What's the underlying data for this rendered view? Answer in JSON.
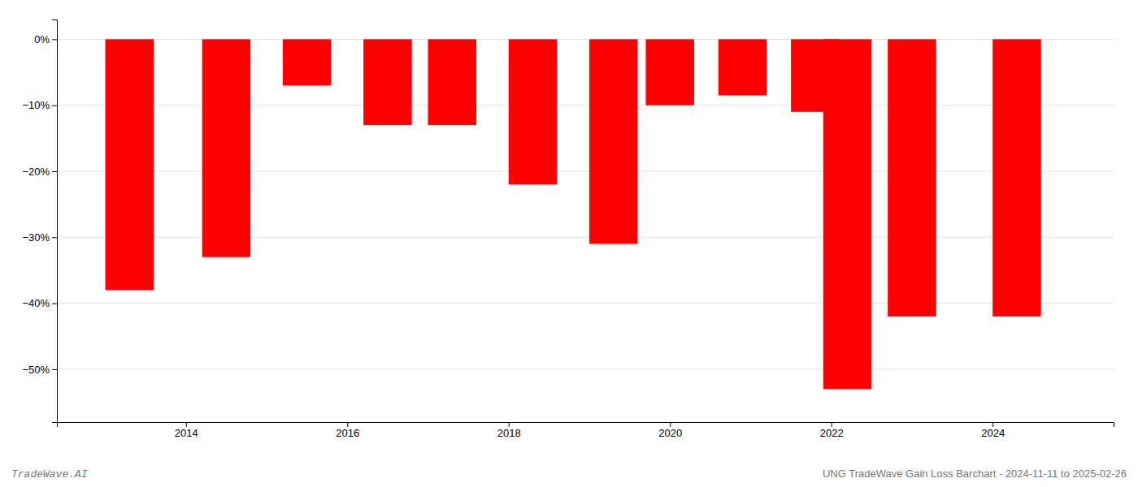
{
  "chart_data": {
    "type": "bar",
    "x": [
      2013.3,
      2014.5,
      2015.5,
      2016.5,
      2017.3,
      2018.3,
      2019.3,
      2020.0,
      2020.9,
      2021.8,
      2022.2,
      2023.0,
      2024.3
    ],
    "values": [
      -38.0,
      -33.0,
      -7.0,
      -13.0,
      -13.0,
      -22.0,
      -31.0,
      -10.0,
      -8.5,
      -11.0,
      -53.0,
      -42.0,
      -42.0
    ],
    "color": "#ff0000",
    "xlim": [
      2012.4,
      2025.5
    ],
    "xticks": [
      2014,
      2016,
      2018,
      2020,
      2022,
      2024
    ],
    "ylim": [
      -58,
      3
    ],
    "yticks": [
      {
        "value": 0,
        "label": "0%"
      },
      {
        "value": -10,
        "label": "−10%"
      },
      {
        "value": -20,
        "label": "−20%"
      },
      {
        "value": -30,
        "label": "−30%"
      },
      {
        "value": -40,
        "label": "−40%"
      },
      {
        "value": -50,
        "label": "−50%"
      }
    ],
    "grid": true,
    "annotations": [
      "TradeWave.AI",
      "UNG TradeWave Gain Loss Barchart - 2024-11-11 to 2025-02-26"
    ]
  }
}
